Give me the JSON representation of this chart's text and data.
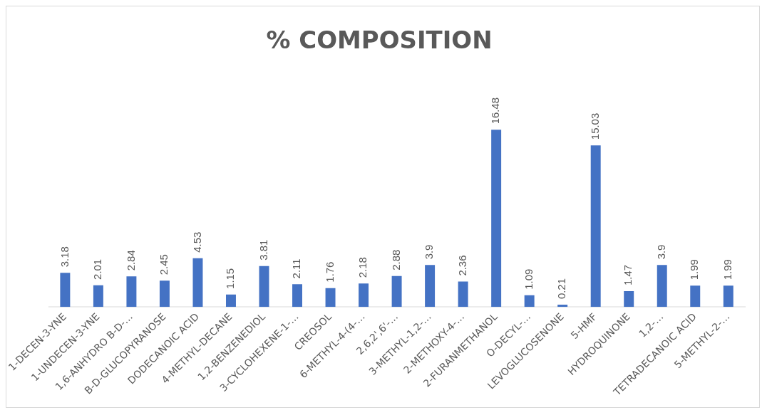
{
  "chart_data": {
    "type": "bar",
    "title": "% COMPOSITION",
    "categories": [
      "1-DECEN-3-YNE",
      "1-UNDECEN-3-YNE",
      "1,6-ANHYDRO B-D-…",
      "B-D-GLUCOPYRANOSE",
      "DODECANOIC ACID",
      "4-METHYL-DECANE",
      "1,2-BENZENEDIOL",
      "3-CYCLOHEXENE-1-…",
      "CREOSOL",
      "6-METHYL-4-(4-…",
      "2,6,2',6'-…",
      "3-METHYL-1,2-…",
      "2-METHOXY-4-…",
      "2-FURANMETHANOL",
      "O-DECYL-…",
      "LEVOGLUCOSENONE",
      "5-HMF",
      "HYDROQUINONE",
      "1,2-…",
      "TETRADECANOIC ACID",
      "5-METHYL-2-…"
    ],
    "values": [
      3.18,
      2.01,
      2.84,
      2.45,
      4.53,
      1.15,
      3.81,
      2.11,
      1.76,
      2.18,
      2.88,
      3.9,
      2.36,
      16.48,
      1.09,
      0.21,
      15.03,
      1.47,
      3.9,
      1.99,
      1.99
    ],
    "color": "#4472c4",
    "data_labels": true,
    "grid": false,
    "legend": false
  }
}
